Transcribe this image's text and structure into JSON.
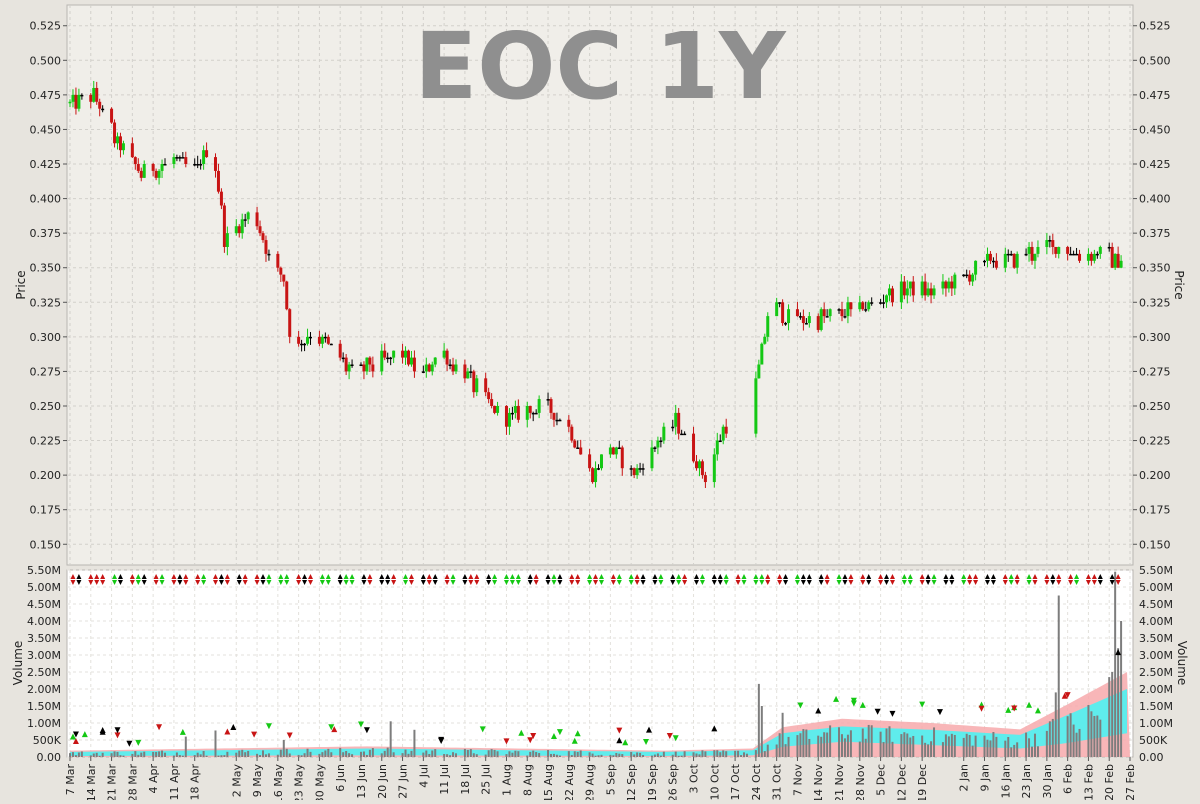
{
  "chart_data": [
    {
      "type": "ohlc",
      "title": "EOC 1Y",
      "ylabel": "Price",
      "ylim": [
        0.135,
        0.54
      ],
      "yticks": [
        0.15,
        0.175,
        0.2,
        0.225,
        0.25,
        0.275,
        0.3,
        0.325,
        0.35,
        0.375,
        0.4,
        0.425,
        0.45,
        0.475,
        0.5,
        0.525
      ],
      "grid": true,
      "colors": {
        "up": "#14c814",
        "down": "#c81414",
        "flat": "#000000",
        "background": "#f0eee9"
      },
      "x_tick_labels": [
        "7 Mar",
        "14 Mar",
        "21 Mar",
        "28 Mar",
        "4 Apr",
        "11 Apr",
        "18 Apr",
        "2 May",
        "9 May",
        "16 May",
        "23 May",
        "30 May",
        "6 Jun",
        "13 Jun",
        "20 Jun",
        "27 Jun",
        "4 Jul",
        "11 Jul",
        "18 Jul",
        "25 Jul",
        "1 Aug",
        "8 Aug",
        "15 Aug",
        "22 Aug",
        "29 Aug",
        "5 Sep",
        "12 Sep",
        "19 Sep",
        "26 Sep",
        "3 Oct",
        "10 Oct",
        "17 Oct",
        "24 Oct",
        "31 Oct",
        "7 Nov",
        "14 Nov",
        "21 Nov",
        "28 Nov",
        "5 Dec",
        "12 Dec",
        "19 Dec",
        "2 Jan",
        "9 Jan",
        "16 Jan",
        "23 Jan",
        "30 Jan",
        "6 Feb",
        "13 Feb",
        "20 Feb",
        "27 Feb"
      ],
      "key_points": [
        {
          "d": 0,
          "c": 0.47
        },
        {
          "d": 8,
          "c": 0.475
        },
        {
          "d": 16,
          "c": 0.44
        },
        {
          "d": 24,
          "c": 0.418
        },
        {
          "d": 35,
          "c": 0.428
        },
        {
          "d": 42,
          "c": 0.42
        },
        {
          "d": 48,
          "c": 0.44
        },
        {
          "d": 52,
          "c": 0.372
        },
        {
          "d": 56,
          "c": 0.378
        },
        {
          "d": 62,
          "c": 0.395
        },
        {
          "d": 64,
          "c": 0.375
        },
        {
          "d": 68,
          "c": 0.355
        },
        {
          "d": 72,
          "c": 0.34
        },
        {
          "d": 75,
          "c": 0.29
        },
        {
          "d": 82,
          "c": 0.305
        },
        {
          "d": 88,
          "c": 0.29
        },
        {
          "d": 95,
          "c": 0.275
        },
        {
          "d": 105,
          "c": 0.282
        },
        {
          "d": 112,
          "c": 0.288
        },
        {
          "d": 118,
          "c": 0.27
        },
        {
          "d": 124,
          "c": 0.29
        },
        {
          "d": 132,
          "c": 0.275
        },
        {
          "d": 138,
          "c": 0.26
        },
        {
          "d": 146,
          "c": 0.24
        },
        {
          "d": 152,
          "c": 0.245
        },
        {
          "d": 160,
          "c": 0.25
        },
        {
          "d": 168,
          "c": 0.235
        },
        {
          "d": 176,
          "c": 0.2
        },
        {
          "d": 182,
          "c": 0.22
        },
        {
          "d": 190,
          "c": 0.2
        },
        {
          "d": 198,
          "c": 0.225
        },
        {
          "d": 204,
          "c": 0.238
        },
        {
          "d": 210,
          "c": 0.215
        },
        {
          "d": 214,
          "c": 0.2
        },
        {
          "d": 220,
          "c": 0.235
        },
        {
          "d": 228,
          "c": 0.225
        },
        {
          "d": 236,
          "c": 0.33
        },
        {
          "d": 240,
          "c": 0.315
        },
        {
          "d": 250,
          "c": 0.312
        },
        {
          "d": 262,
          "c": 0.318
        },
        {
          "d": 270,
          "c": 0.325
        },
        {
          "d": 280,
          "c": 0.335
        },
        {
          "d": 292,
          "c": 0.332
        },
        {
          "d": 300,
          "c": 0.342
        },
        {
          "d": 310,
          "c": 0.355
        },
        {
          "d": 320,
          "c": 0.358
        },
        {
          "d": 330,
          "c": 0.365
        },
        {
          "d": 340,
          "c": 0.36
        },
        {
          "d": 348,
          "c": 0.362
        },
        {
          "d": 352,
          "c": 0.355
        },
        {
          "d": 356,
          "c": 0.36
        }
      ],
      "gaps": [
        [
          224,
          228
        ]
      ]
    },
    {
      "type": "bar",
      "ylabel": "Volume",
      "ylim": [
        0,
        5500000
      ],
      "ytick_labels": [
        "0.00",
        "500K",
        "1.00M",
        "1.50M",
        "2.00M",
        "2.50M",
        "3.00M",
        "3.50M",
        "4.00M",
        "4.50M",
        "5.00M",
        "5.50M"
      ],
      "yticks": [
        0,
        500000,
        1000000,
        1500000,
        2000000,
        2500000,
        3000000,
        3500000,
        4000000,
        4500000,
        5000000,
        5500000
      ],
      "grid": true,
      "spikes": [
        {
          "d": 39,
          "v": 600000
        },
        {
          "d": 49,
          "v": 780000
        },
        {
          "d": 72,
          "v": 500000
        },
        {
          "d": 82,
          "v": 600000
        },
        {
          "d": 108,
          "v": 1050000
        },
        {
          "d": 116,
          "v": 800000
        },
        {
          "d": 232,
          "v": 2150000
        },
        {
          "d": 233,
          "v": 1500000
        },
        {
          "d": 236,
          "v": 1150000
        },
        {
          "d": 240,
          "v": 1300000
        },
        {
          "d": 285,
          "v": 1000000
        },
        {
          "d": 300,
          "v": 1350000
        },
        {
          "d": 330,
          "v": 1050000
        },
        {
          "d": 332,
          "v": 1900000
        },
        {
          "d": 333,
          "v": 4750000
        },
        {
          "d": 336,
          "v": 1200000
        },
        {
          "d": 348,
          "v": 1600000
        },
        {
          "d": 350,
          "v": 2350000
        },
        {
          "d": 351,
          "v": 2500000
        },
        {
          "d": 352,
          "v": 5450000
        },
        {
          "d": 353,
          "v": 3200000
        },
        {
          "d": 354,
          "v": 4000000
        },
        {
          "d": 355,
          "v": 2100000
        }
      ],
      "moving_average_band": [
        {
          "d": 0,
          "lo": 30000,
          "hi": 150000
        },
        {
          "d": 100,
          "lo": 50000,
          "hi": 250000
        },
        {
          "d": 200,
          "lo": 30000,
          "hi": 150000
        },
        {
          "d": 230,
          "lo": 50000,
          "hi": 200000
        },
        {
          "d": 240,
          "lo": 300000,
          "hi": 700000
        },
        {
          "d": 260,
          "lo": 450000,
          "hi": 900000
        },
        {
          "d": 290,
          "lo": 350000,
          "hi": 800000
        },
        {
          "d": 320,
          "lo": 250000,
          "hi": 650000
        },
        {
          "d": 335,
          "lo": 400000,
          "hi": 1200000
        },
        {
          "d": 356,
          "lo": 700000,
          "hi": 2000000
        }
      ]
    }
  ]
}
